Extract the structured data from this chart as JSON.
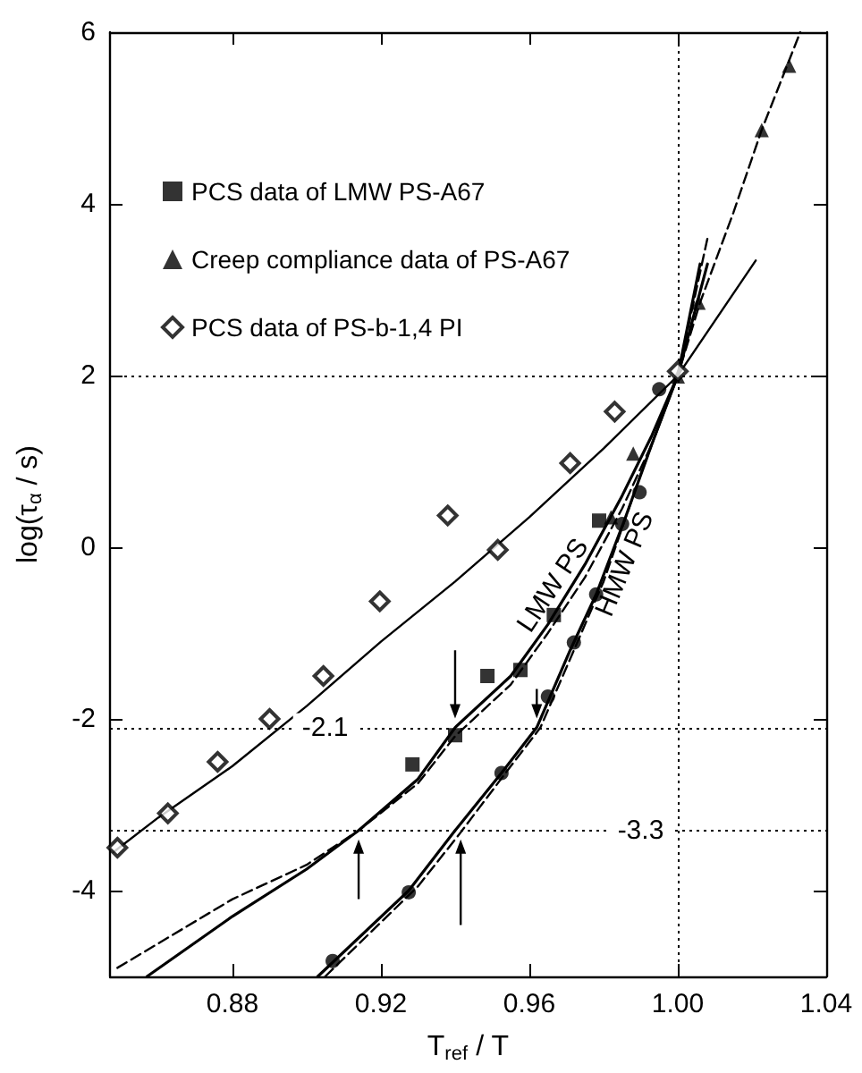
{
  "chart_data": {
    "type": "scatter",
    "xlabel": "T$_{ref}$ / T",
    "ylabel": "log(τ$_{α}$ / s)",
    "xlim": [
      0.847,
      1.04
    ],
    "xticks": [
      0.88,
      0.92,
      0.96,
      {
        "value": 1.0,
        "label": "1.00"
      },
      1.04
    ],
    "ylim": [
      -5,
      6
    ],
    "yticks": [
      -4,
      -2,
      0,
      2,
      4,
      6
    ],
    "grid": false,
    "legend": "top left",
    "series": [
      {
        "name": "PCS data of LMW PS-A67",
        "marker": "square",
        "color": "#000000",
        "x": [
          0.9285,
          0.94,
          0.9487,
          0.9576,
          0.9666,
          0.9788
        ],
        "values": [
          -2.53,
          -2.19,
          -1.5,
          -1.43,
          -0.79,
          0.31
        ]
      },
      {
        "name": "Creep compliance data of PS-A67",
        "marker": "triangle",
        "color": "#000000",
        "x": [
          0.982,
          0.988,
          1.0,
          1.0056,
          1.0226,
          1.03
        ],
        "values": [
          0.35,
          1.09,
          1.99,
          2.85,
          4.86,
          5.61
        ]
      },
      {
        "name": "PCS data of PS-b-1,4 PI",
        "marker": "diamond",
        "color": "#000000",
        "x": [
          0.849,
          0.8626,
          0.876,
          0.89,
          0.9045,
          0.9197,
          0.938,
          0.9515,
          0.971,
          0.983,
          1.0
        ],
        "values": [
          -3.5,
          -3.1,
          -2.5,
          -2.0,
          -1.5,
          -0.63,
          0.37,
          -0.03,
          0.98,
          1.58,
          2.05
        ]
      },
      {
        "marker": "circle",
        "color": "#000000",
        "x": [
          0.907,
          0.9275,
          0.9525,
          0.965,
          0.972,
          0.978,
          0.985,
          0.9897,
          0.995
        ],
        "values": [
          -4.82,
          -4.02,
          -2.63,
          -1.74,
          -1.11,
          -0.55,
          0.27,
          0.64,
          1.84
        ]
      },
      {
        "type": "line",
        "marker": "none",
        "line_style": "solid",
        "color": "#000000",
        "x": [
          0.848,
          0.86,
          0.88,
          0.9,
          0.92,
          0.94,
          0.96,
          0.98,
          1.0,
          1.021
        ],
        "values": [
          -3.55,
          -3.15,
          -2.55,
          -1.85,
          -1.1,
          -0.4,
          0.35,
          1.15,
          2.0,
          3.34
        ]
      },
      {
        "name": "LMW PS",
        "type": "line",
        "marker": "none",
        "line_style": "solid",
        "color": "#000000",
        "x": [
          0.857,
          0.88,
          0.9,
          0.914,
          0.93,
          0.94,
          0.955,
          0.965,
          0.975,
          0.985,
          0.993,
          1.0,
          1.008
        ],
        "values": [
          -5.0,
          -4.3,
          -3.75,
          -3.3,
          -2.7,
          -2.1,
          -1.5,
          -0.9,
          -0.2,
          0.6,
          1.3,
          2.0,
          3.3
        ]
      },
      {
        "type": "line",
        "marker": "none",
        "line_style": "dashed",
        "color": "#000000",
        "x": [
          0.849,
          0.88,
          0.9,
          0.914,
          0.93,
          0.94,
          0.955,
          0.965,
          0.975,
          0.985,
          0.993,
          1.0,
          1.006,
          1.015,
          1.0226,
          1.033
        ],
        "values": [
          -4.9,
          -4.1,
          -3.7,
          -3.3,
          -2.75,
          -2.2,
          -1.6,
          -1.0,
          -0.35,
          0.45,
          1.2,
          2.0,
          2.85,
          3.9,
          4.86,
          6.0
        ]
      },
      {
        "name": "HMW PS",
        "type": "line",
        "marker": "none",
        "line_style": "solid",
        "color": "#000000",
        "x": [
          0.903,
          0.9275,
          0.94,
          0.9525,
          0.962,
          0.971,
          0.978,
          0.9855,
          0.993,
          1.0,
          1.006
        ],
        "values": [
          -5.0,
          -4.0,
          -3.3,
          -2.63,
          -2.1,
          -1.2,
          -0.55,
          0.3,
          1.2,
          2.0,
          3.3
        ]
      },
      {
        "type": "line",
        "marker": "none",
        "line_style": "dashed",
        "color": "#000000",
        "x": [
          0.905,
          0.93,
          0.941,
          0.955,
          0.963,
          0.972,
          0.98,
          0.99,
          1.0,
          1.008
        ],
        "values": [
          -5.0,
          -3.95,
          -3.35,
          -2.55,
          -2.1,
          -1.2,
          -0.4,
          0.85,
          2.0,
          3.6
        ]
      }
    ],
    "ref_lines": [
      {
        "axis": "y",
        "value": 2,
        "line_style": "dotted"
      },
      {
        "axis": "x",
        "value": 1.0,
        "line_style": "dotted"
      },
      {
        "axis": "y",
        "value": -2.1,
        "line_style": "dotted"
      },
      {
        "axis": "y",
        "value": -3.3,
        "line_style": "dotted"
      }
    ],
    "annotations": [
      {
        "text": "-2.1",
        "x": 0.905,
        "y": -2.1
      },
      {
        "text": "-3.3",
        "x": 0.99,
        "y": -3.3
      }
    ]
  }
}
